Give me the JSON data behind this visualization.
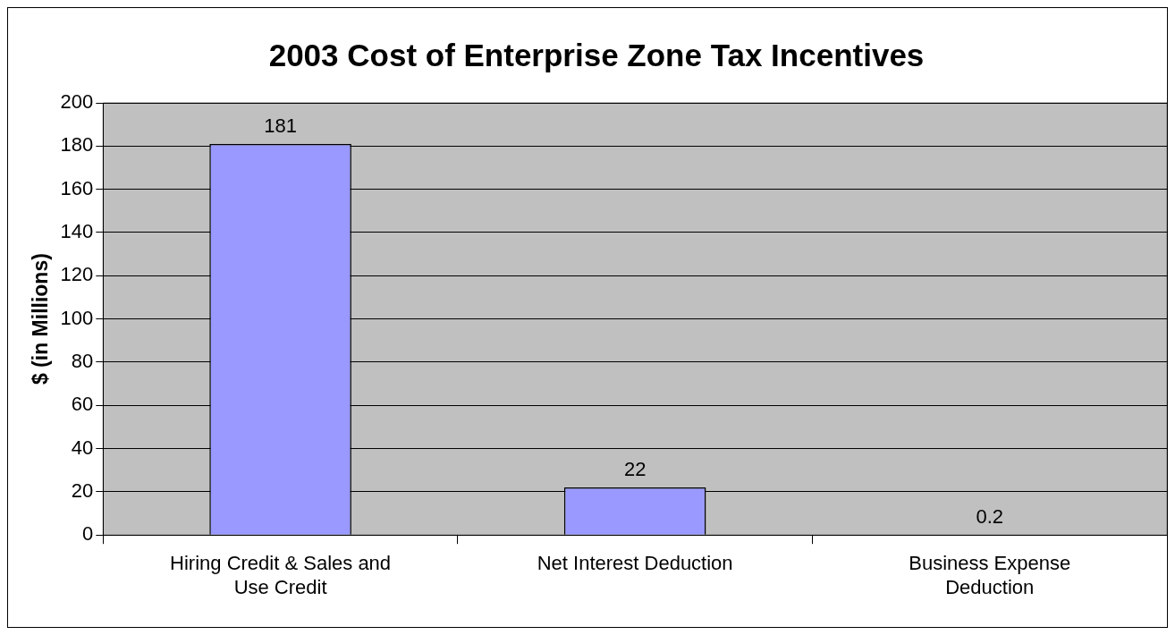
{
  "chart_data": {
    "type": "bar",
    "title": "2003 Cost of Enterprise Zone Tax Incentives",
    "ylabel": "$ (in Millions)",
    "categories": [
      "Hiring Credit & Sales and Use Credit",
      "Net Interest Deduction",
      "Business Expense Deduction"
    ],
    "values": [
      181,
      22,
      0.2
    ],
    "color": "#9999ff",
    "ylim": [
      0,
      200
    ],
    "yticks": [
      0,
      20,
      40,
      60,
      80,
      100,
      120,
      140,
      160,
      180,
      200
    ],
    "grid": "y",
    "data_labels": true,
    "legend": false
  }
}
